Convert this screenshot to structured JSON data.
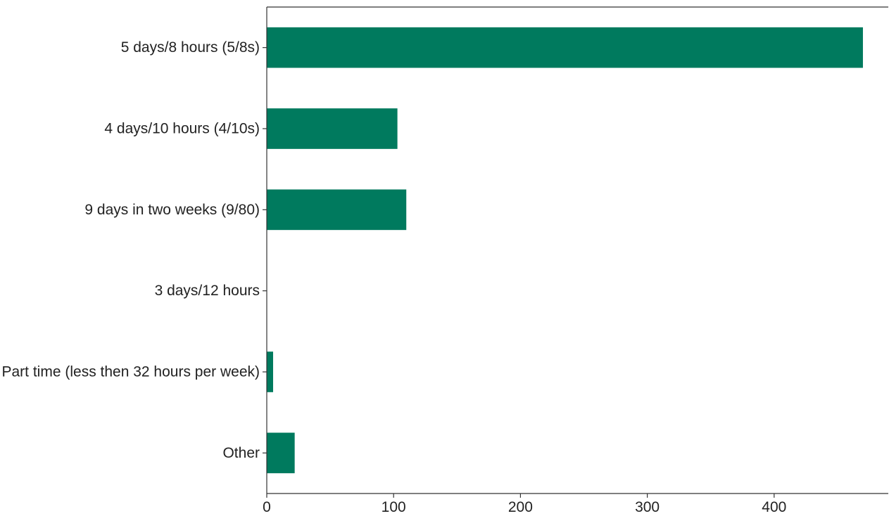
{
  "chart_data": {
    "type": "bar",
    "orientation": "horizontal",
    "categories": [
      "5 days/8 hours (5/8s)",
      "4 days/10 hours (4/10s)",
      "9 days in two weeks (9/80)",
      "3 days/12 hours",
      "Part time (less then 32 hours per week)",
      "Other"
    ],
    "values": [
      470,
      103,
      110,
      0,
      5,
      22
    ],
    "xlim": [
      0,
      490
    ],
    "xticks": [
      0,
      100,
      200,
      300,
      400
    ],
    "bar_color": "#007a5e",
    "grid": false,
    "title": "",
    "xlabel": "",
    "ylabel": ""
  }
}
